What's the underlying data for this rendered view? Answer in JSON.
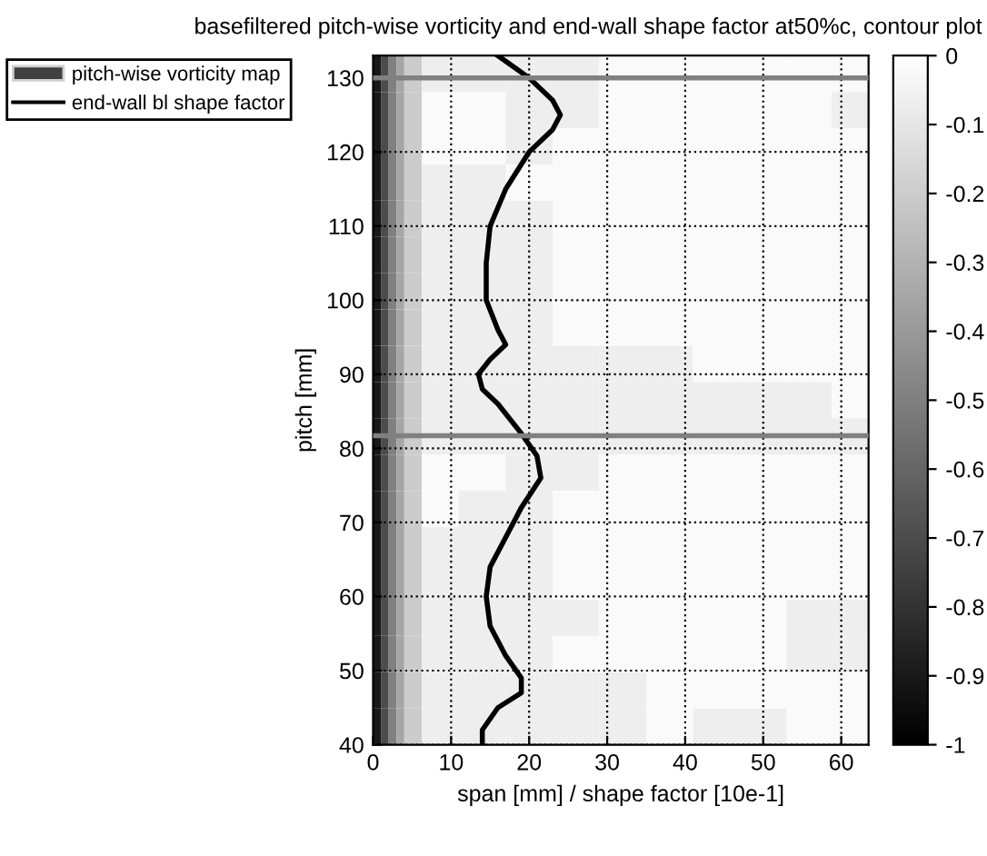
{
  "chart_data": {
    "type": "heatmap",
    "title": "basefiltered pitch-wise vorticity and end-wall shape factor at50%c, contour plot",
    "xlabel": "span [mm] / shape factor [10e-1]",
    "ylabel": "pitch [mm]",
    "x": [
      0.5,
      1.5,
      2.5,
      3.5,
      4.5,
      8,
      14,
      20,
      26,
      32,
      38,
      44,
      50,
      56,
      61.5
    ],
    "annotations": [
      "pitch-wise vorticity map"
    ],
    "cells": [
      [
        -0.9,
        -0.7,
        -0.5,
        -0.35,
        -0.2,
        -0.07,
        -0.07,
        -0.07,
        -0.07,
        -0.02,
        -0.02,
        -0.02,
        -0.02,
        -0.02,
        -0.02
      ],
      [
        -0.9,
        -0.7,
        -0.5,
        -0.35,
        -0.2,
        -0.02,
        -0.02,
        -0.07,
        -0.07,
        -0.02,
        -0.02,
        -0.02,
        -0.02,
        -0.02,
        -0.07
      ],
      [
        -0.9,
        -0.7,
        -0.5,
        -0.35,
        -0.2,
        -0.02,
        -0.02,
        -0.07,
        -0.02,
        -0.02,
        -0.02,
        -0.02,
        -0.02,
        -0.02,
        -0.02
      ],
      [
        -0.9,
        -0.7,
        -0.5,
        -0.35,
        -0.2,
        -0.07,
        -0.07,
        -0.02,
        -0.02,
        -0.02,
        -0.02,
        -0.02,
        -0.02,
        -0.02,
        -0.02
      ],
      [
        -0.9,
        -0.7,
        -0.5,
        -0.35,
        -0.2,
        -0.07,
        -0.07,
        -0.07,
        -0.02,
        -0.02,
        -0.02,
        -0.02,
        -0.02,
        -0.02,
        -0.02
      ],
      [
        -0.9,
        -0.7,
        -0.5,
        -0.35,
        -0.2,
        -0.07,
        -0.07,
        -0.07,
        -0.02,
        -0.02,
        -0.02,
        -0.02,
        -0.02,
        -0.02,
        -0.02
      ],
      [
        -0.9,
        -0.7,
        -0.5,
        -0.35,
        -0.2,
        -0.07,
        -0.07,
        -0.07,
        -0.02,
        -0.02,
        -0.02,
        -0.02,
        -0.02,
        -0.02,
        -0.02
      ],
      [
        -0.9,
        -0.7,
        -0.5,
        -0.35,
        -0.2,
        -0.07,
        -0.07,
        -0.07,
        -0.02,
        -0.02,
        -0.02,
        -0.02,
        -0.02,
        -0.02,
        -0.02
      ],
      [
        -0.9,
        -0.7,
        -0.5,
        -0.35,
        -0.2,
        -0.07,
        -0.07,
        -0.07,
        -0.07,
        -0.07,
        -0.07,
        -0.02,
        -0.02,
        -0.02,
        -0.02
      ],
      [
        -0.9,
        -0.7,
        -0.5,
        -0.35,
        -0.2,
        -0.07,
        -0.07,
        -0.07,
        -0.07,
        -0.07,
        -0.07,
        -0.07,
        -0.07,
        -0.07,
        -0.02
      ],
      [
        -0.9,
        -0.7,
        -0.5,
        -0.35,
        -0.2,
        -0.07,
        -0.07,
        -0.07,
        -0.07,
        -0.07,
        -0.07,
        -0.07,
        -0.07,
        -0.07,
        -0.07
      ],
      [
        -0.9,
        -0.7,
        -0.5,
        -0.35,
        -0.2,
        -0.02,
        -0.02,
        -0.07,
        -0.07,
        -0.02,
        -0.02,
        -0.02,
        -0.02,
        -0.02,
        -0.02
      ],
      [
        -0.9,
        -0.7,
        -0.5,
        -0.35,
        -0.2,
        -0.02,
        -0.07,
        -0.07,
        -0.02,
        -0.02,
        -0.02,
        -0.02,
        -0.02,
        -0.02,
        -0.02
      ],
      [
        -0.9,
        -0.7,
        -0.5,
        -0.35,
        -0.2,
        -0.07,
        -0.07,
        -0.07,
        -0.02,
        -0.02,
        -0.02,
        -0.02,
        -0.02,
        -0.02,
        -0.02
      ],
      [
        -0.9,
        -0.7,
        -0.5,
        -0.35,
        -0.2,
        -0.07,
        -0.07,
        -0.07,
        -0.02,
        -0.02,
        -0.02,
        -0.02,
        -0.02,
        -0.02,
        -0.02
      ],
      [
        -0.9,
        -0.7,
        -0.5,
        -0.35,
        -0.2,
        -0.07,
        -0.07,
        -0.07,
        -0.07,
        -0.02,
        -0.02,
        -0.02,
        -0.02,
        -0.07,
        -0.07
      ],
      [
        -0.9,
        -0.7,
        -0.5,
        -0.35,
        -0.2,
        -0.07,
        -0.07,
        -0.07,
        -0.02,
        -0.02,
        -0.02,
        -0.02,
        -0.02,
        -0.07,
        -0.07
      ],
      [
        -0.9,
        -0.7,
        -0.5,
        -0.35,
        -0.2,
        -0.07,
        -0.07,
        -0.07,
        -0.07,
        -0.07,
        -0.02,
        -0.02,
        -0.02,
        -0.02,
        -0.02
      ],
      [
        -0.9,
        -0.7,
        -0.5,
        -0.35,
        -0.2,
        -0.07,
        -0.07,
        -0.07,
        -0.07,
        -0.07,
        -0.02,
        -0.07,
        -0.07,
        -0.02,
        -0.02
      ]
    ],
    "series": [
      {
        "type": "line",
        "name": "end-wall bl shape factor",
        "color": "#000000",
        "x": [
          14,
          14,
          16,
          19,
          19,
          17,
          15,
          14.5,
          15,
          17,
          19,
          21.5,
          21,
          19,
          16,
          14,
          13.5,
          15,
          17,
          16,
          14.5,
          14.5,
          15,
          17,
          20,
          23,
          24,
          23,
          20,
          16
        ],
        "values": [
          40,
          42,
          45,
          47,
          49,
          52,
          56,
          60,
          64,
          68,
          72,
          76,
          79,
          82,
          86,
          88,
          90,
          92,
          94,
          96,
          100,
          105,
          110,
          115,
          120,
          123,
          125,
          127,
          130,
          133
        ]
      }
    ],
    "xlim": [
      0,
      63.5
    ],
    "xticks": [
      0,
      10,
      20,
      30,
      40,
      50,
      60
    ],
    "ylim": [
      40,
      133
    ],
    "yticks": [
      40,
      50,
      60,
      70,
      80,
      90,
      100,
      110,
      120,
      130
    ],
    "clim": [
      -1,
      0
    ],
    "cticks": [
      0,
      -0.1,
      -0.2,
      -0.3,
      -0.4,
      -0.5,
      -0.6,
      -0.7,
      -0.8,
      -0.9,
      -1
    ],
    "ref_lines": [
      {
        "axis": "y",
        "value": 130,
        "color": "#808080"
      },
      {
        "axis": "y",
        "value": 81.7,
        "color": "#808080"
      }
    ],
    "grid": true,
    "legend": "top left"
  }
}
